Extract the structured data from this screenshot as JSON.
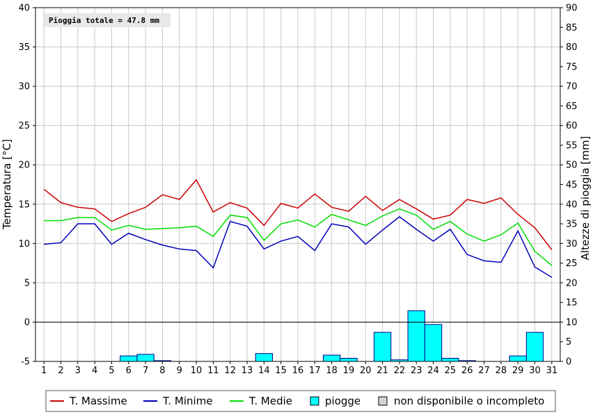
{
  "chart_data": {
    "type": "line",
    "annotation": "Pioggia totale = 47.8 mm",
    "ylabel": "Temperatura [°C]",
    "ylabel_right": "Altezze di pioggia [mm]",
    "ylim": [
      -5,
      40
    ],
    "ylim_right": [
      0,
      90
    ],
    "yticks": [
      -5,
      0,
      5,
      10,
      15,
      20,
      25,
      30,
      35,
      40
    ],
    "yticks_right": [
      0,
      5,
      10,
      15,
      20,
      25,
      30,
      35,
      40,
      45,
      50,
      55,
      60,
      65,
      70,
      75,
      80,
      85,
      90
    ],
    "x": [
      1,
      2,
      3,
      4,
      5,
      6,
      7,
      8,
      9,
      10,
      11,
      12,
      13,
      14,
      15,
      16,
      17,
      18,
      19,
      20,
      21,
      22,
      23,
      24,
      25,
      26,
      27,
      28,
      29,
      30,
      31
    ],
    "grid": true,
    "legend_position": "bottom",
    "series": [
      {
        "name": "T. Massime",
        "color": "#cc0000",
        "values": [
          16.9,
          15.2,
          14.6,
          14.4,
          12.8,
          13.8,
          14.6,
          16.2,
          15.6,
          18.1,
          14.0,
          15.2,
          14.5,
          12.3,
          15.1,
          14.5,
          16.3,
          14.6,
          14.1,
          16.0,
          14.2,
          15.6,
          14.4,
          13.1,
          13.6,
          15.6,
          15.1,
          15.8,
          13.7,
          12.0,
          9.2
        ]
      },
      {
        "name": "T. Minime",
        "color": "#0000bb",
        "values": [
          9.9,
          10.1,
          12.5,
          12.5,
          9.9,
          11.3,
          10.5,
          9.8,
          9.3,
          9.1,
          6.9,
          12.8,
          12.2,
          9.3,
          10.3,
          10.9,
          9.1,
          12.5,
          12.1,
          9.9,
          11.7,
          13.4,
          11.8,
          10.3,
          11.8,
          8.6,
          7.8,
          7.6,
          11.6,
          7.0,
          5.7
        ]
      },
      {
        "name": "T. Medie",
        "color": "#00dd00",
        "values": [
          12.9,
          12.9,
          13.3,
          13.3,
          11.7,
          12.3,
          11.8,
          11.9,
          12.0,
          12.2,
          10.9,
          13.6,
          13.3,
          10.4,
          12.5,
          13.0,
          12.1,
          13.7,
          13.0,
          12.3,
          13.5,
          14.4,
          13.6,
          11.8,
          12.8,
          11.2,
          10.3,
          11.1,
          12.6,
          9.0,
          7.2
        ]
      }
    ],
    "rain": {
      "name": "piogge",
      "color": "#00ffff",
      "values": [
        0,
        0,
        0,
        0,
        0,
        1.4,
        1.8,
        0.2,
        0,
        0,
        0,
        0,
        0,
        2.0,
        0,
        0,
        0,
        1.6,
        0.8,
        0,
        7.4,
        0.4,
        12.9,
        9.4,
        0.8,
        0.2,
        0,
        0,
        1.4,
        7.4,
        0
      ]
    },
    "legend_extra": "non disponibile o incompleto"
  }
}
